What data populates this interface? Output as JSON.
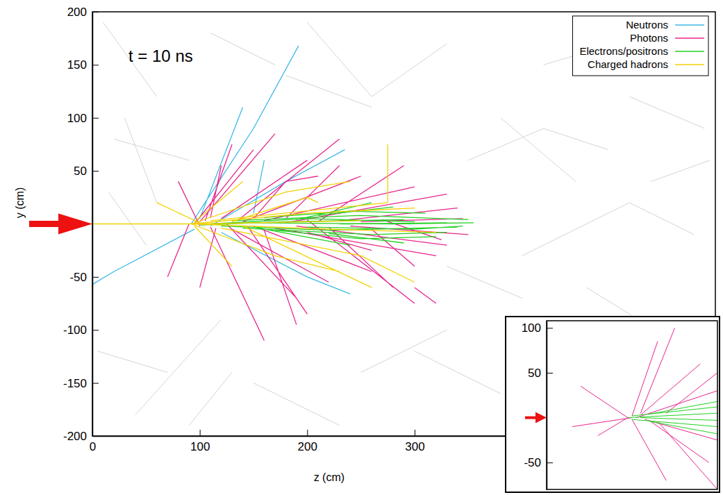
{
  "chart_data": [
    {
      "type": "line",
      "annotation": "t = 10 ns",
      "x_label": "z (cm)",
      "y_label": "y (cm)",
      "xlim": [
        0,
        580
      ],
      "ylim": [
        -200,
        200
      ],
      "xticks": [
        0,
        100,
        200,
        300
      ],
      "yticks": [
        -200,
        -150,
        -100,
        -50,
        50,
        100,
        150,
        200
      ],
      "legend": "top-right",
      "series": [
        {
          "color": "#d4d4d4",
          "x": [
            10,
            60,
            null,
            40,
            120,
            null,
            200,
            260,
            330,
            null,
            380,
            450,
            null,
            400,
            500,
            560,
            null,
            20,
            90,
            null,
            150,
            230,
            null,
            300,
            380,
            null,
            420,
            520,
            null,
            460,
            540,
            null,
            5,
            70,
            null,
            250,
            330,
            null,
            350,
            420,
            480,
            null,
            60,
            30,
            null,
            90,
            130,
            null,
            500,
            570,
            null,
            330,
            400,
            null,
            260,
            180,
            null,
            520,
            575,
            null,
            15,
            50,
            null,
            430,
            470,
            null,
            110,
            170
          ],
          "values": [
            190,
            120,
            null,
            -180,
            -90,
            null,
            190,
            120,
            170,
            null,
            100,
            40,
            null,
            -30,
            20,
            -10,
            null,
            80,
            60,
            null,
            -150,
            -190,
            null,
            -120,
            -160,
            null,
            150,
            180,
            null,
            -60,
            -110,
            null,
            -120,
            -140,
            null,
            -140,
            -100,
            null,
            60,
            90,
            70,
            null,
            20,
            100,
            null,
            -190,
            -140,
            null,
            120,
            90,
            null,
            -40,
            -70,
            null,
            110,
            140,
            null,
            40,
            60,
            null,
            30,
            -20,
            null,
            -150,
            -190,
            null,
            180,
            150
          ]
        },
        {
          "name": "Neutrons",
          "color": "#3cb8e6",
          "x": [
            92,
            150,
            192,
            null,
            100,
            140,
            null,
            110,
            180,
            235,
            null,
            95,
            20,
            0,
            null,
            120,
            200,
            240,
            null,
            150,
            160
          ],
          "values": [
            0,
            90,
            168,
            null,
            5,
            110,
            null,
            -2,
            40,
            70,
            null,
            -5,
            -45,
            -57,
            null,
            -8,
            -50,
            -66,
            null,
            10,
            60
          ]
        },
        {
          "name": "Photons",
          "color": "#e8248c",
          "x": [
            95,
            150,
            null,
            100,
            170,
            null,
            110,
            160,
            null,
            120,
            200,
            null,
            130,
            220,
            null,
            140,
            250,
            null,
            150,
            260,
            null,
            160,
            300,
            null,
            170,
            320,
            null,
            180,
            330,
            null,
            190,
            330,
            null,
            200,
            300,
            null,
            90,
            70,
            null,
            100,
            80,
            null,
            105,
            130,
            null,
            115,
            100,
            null,
            125,
            190,
            null,
            135,
            230,
            null,
            145,
            200,
            null,
            210,
            290,
            null,
            220,
            280,
            null,
            230,
            340,
            null,
            240,
            350,
            null,
            250,
            345,
            null,
            260,
            300,
            null,
            180,
            230,
            null,
            160,
            190,
            null,
            200,
            260,
            null,
            270,
            325,
            null,
            110,
            120,
            null,
            150,
            180,
            210,
            null,
            300,
            320
          ],
          "values": [
            0,
            70,
            null,
            2,
            85,
            null,
            -3,
            -110,
            null,
            5,
            60,
            null,
            -5,
            -55,
            null,
            2,
            45,
            null,
            -2,
            -45,
            null,
            3,
            35,
            null,
            -4,
            -30,
            null,
            1,
            28,
            null,
            -2,
            -20,
            null,
            4,
            -75,
            null,
            0,
            -50,
            null,
            -2,
            40,
            null,
            3,
            75,
            null,
            -4,
            -60,
            null,
            0,
            -70,
            null,
            3,
            80,
            null,
            -3,
            -85,
            null,
            2,
            55,
            null,
            -3,
            -60,
            null,
            3,
            15,
            null,
            -2,
            -10,
            null,
            2,
            5,
            null,
            -5,
            -40,
            null,
            5,
            55,
            null,
            -6,
            -95,
            null,
            -8,
            -25,
            null,
            4,
            -15,
            null,
            6,
            55,
            null,
            5,
            40,
            45,
            null,
            -60,
            -75
          ]
        },
        {
          "name": "Electrons/positrons",
          "color": "#22d022",
          "x": [
            110,
            200,
            300,
            null,
            120,
            220,
            340,
            null,
            130,
            250,
            350,
            null,
            140,
            260,
            330,
            null,
            150,
            280,
            355,
            null,
            160,
            240,
            310,
            null,
            170,
            250,
            320,
            null,
            180,
            290,
            null,
            200,
            300,
            345,
            null,
            210,
            280,
            null,
            220,
            290,
            null,
            230,
            330,
            null,
            100,
            180,
            null,
            190,
            260,
            null,
            150,
            240
          ],
          "values": [
            0,
            5,
            2,
            null,
            -2,
            -6,
            -3,
            null,
            3,
            8,
            4,
            null,
            -4,
            -10,
            -8,
            null,
            1,
            0,
            1,
            null,
            6,
            12,
            10,
            null,
            -6,
            -14,
            -12,
            null,
            2,
            4,
            null,
            -3,
            -5,
            -2,
            null,
            8,
            16,
            null,
            -9,
            -18,
            null,
            0,
            1,
            null,
            -1,
            2,
            null,
            4,
            20,
            null,
            -3,
            -20
          ]
        },
        {
          "name": "Charged hadrons",
          "color": "#f2d200",
          "x": [
            0,
            92,
            null,
            92,
            200,
            300,
            null,
            92,
            220,
            320,
            null,
            92,
            180,
            240,
            null,
            92,
            170,
            230,
            null,
            95,
            140,
            null,
            95,
            130,
            null,
            100,
            250,
            null,
            110,
            275,
            275,
            null,
            120,
            250,
            300,
            null,
            100,
            60,
            null,
            130,
            200,
            210,
            null,
            140,
            260
          ],
          "values": [
            0,
            0,
            null,
            0,
            10,
            15,
            null,
            0,
            -5,
            -8,
            null,
            0,
            30,
            40,
            null,
            0,
            -30,
            -45,
            null,
            2,
            40,
            null,
            -2,
            -40,
            null,
            0,
            3,
            null,
            3,
            20,
            75,
            null,
            -4,
            -30,
            -55,
            null,
            1,
            20,
            null,
            2,
            25,
            20,
            null,
            -2,
            -60
          ]
        }
      ]
    },
    {
      "type": "line",
      "xlim": [
        0,
        200
      ],
      "ylim": [
        -80,
        108
      ],
      "yticks": [
        -50,
        50,
        100
      ],
      "tick_labels": "y",
      "series": [
        {
          "color": "#e8248c",
          "x": [
            95,
            40,
            null,
            95,
            60,
            null,
            100,
            130,
            null,
            100,
            140,
            null,
            110,
            180,
            null,
            120,
            190,
            null,
            110,
            150,
            null,
            130,
            200,
            null,
            105,
            200,
            null,
            115,
            200,
            null,
            100,
            30,
            null,
            140,
            200
          ],
          "values": [
            0,
            35,
            null,
            0,
            -20,
            null,
            2,
            85,
            null,
            -2,
            -70,
            null,
            3,
            60,
            null,
            -3,
            -50,
            null,
            5,
            100,
            null,
            -4,
            -80,
            null,
            0,
            30,
            null,
            -2,
            -25,
            null,
            0,
            -10,
            null,
            5,
            50
          ]
        },
        {
          "color": "#22d022",
          "x": [
            95,
            200,
            null,
            100,
            200,
            null,
            100,
            200,
            null,
            110,
            200,
            null,
            120,
            200,
            null,
            120,
            200
          ],
          "values": [
            0,
            5,
            null,
            2,
            12,
            null,
            -2,
            -10,
            null,
            0,
            -3,
            null,
            4,
            18,
            null,
            -4,
            -18
          ]
        }
      ]
    }
  ]
}
